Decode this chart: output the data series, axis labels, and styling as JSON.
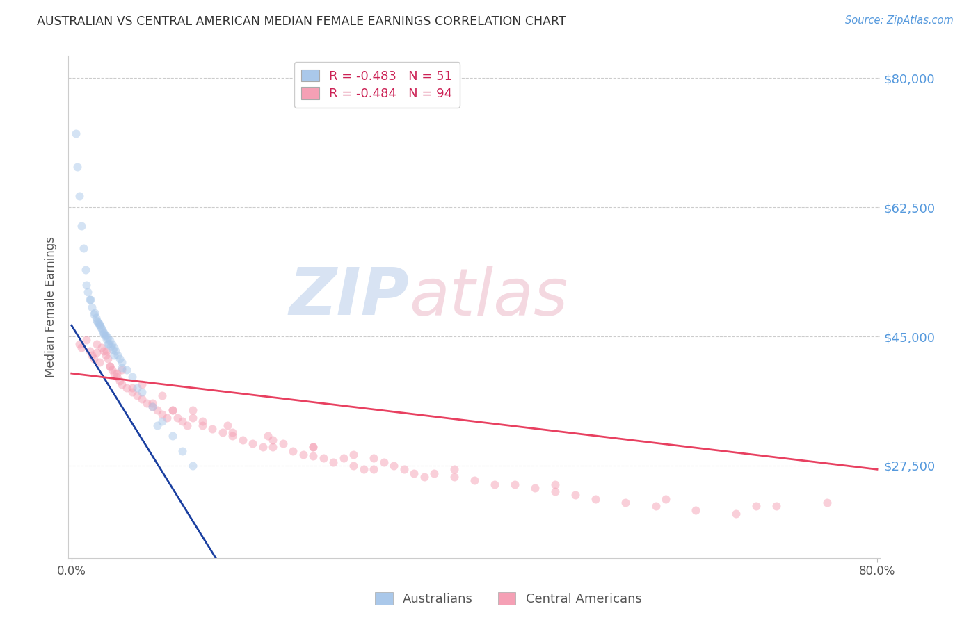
{
  "title": "AUSTRALIAN VS CENTRAL AMERICAN MEDIAN FEMALE EARNINGS CORRELATION CHART",
  "source": "Source: ZipAtlas.com",
  "ylabel": "Median Female Earnings",
  "xlim": [
    -0.003,
    0.803
  ],
  "ylim": [
    15000,
    83000
  ],
  "yticks": [
    27500,
    45000,
    62500,
    80000
  ],
  "ytick_labels": [
    "$27,500",
    "$45,000",
    "$62,500",
    "$80,000"
  ],
  "xtick_positions": [
    0.0,
    0.8
  ],
  "xtick_labels": [
    "0.0%",
    "80.0%"
  ],
  "background_color": "#ffffff",
  "grid_color": "#cccccc",
  "australian_color": "#aac8ea",
  "central_american_color": "#f5a0b5",
  "australian_line_color": "#1a3fa0",
  "central_american_line_color": "#e84060",
  "legend_label_aus": "Australians",
  "legend_label_ca": "Central Americans",
  "watermark_zip": "ZIP",
  "watermark_atlas": "atlas",
  "marker_size": 75,
  "marker_alpha": 0.5,
  "aus_R": -0.483,
  "aus_N": 51,
  "ca_R": -0.484,
  "ca_N": 94,
  "aus_x": [
    0.004,
    0.006,
    0.008,
    0.01,
    0.012,
    0.014,
    0.016,
    0.018,
    0.02,
    0.022,
    0.024,
    0.026,
    0.028,
    0.03,
    0.032,
    0.034,
    0.036,
    0.038,
    0.04,
    0.042,
    0.044,
    0.046,
    0.048,
    0.05,
    0.055,
    0.06,
    0.07,
    0.08,
    0.09,
    0.1,
    0.11,
    0.12,
    0.025,
    0.027,
    0.029,
    0.031,
    0.033,
    0.035,
    0.037,
    0.039,
    0.041,
    0.015,
    0.019,
    0.023,
    0.028,
    0.032,
    0.036,
    0.042,
    0.05,
    0.065,
    0.085
  ],
  "aus_y": [
    72500,
    68000,
    64000,
    60000,
    57000,
    54000,
    51000,
    50000,
    49000,
    48000,
    47500,
    47000,
    46500,
    46000,
    45500,
    45200,
    44800,
    44400,
    44000,
    43500,
    43000,
    42500,
    42000,
    41500,
    40500,
    39500,
    37500,
    35500,
    33500,
    31500,
    29500,
    27500,
    47200,
    46800,
    46200,
    45700,
    45100,
    44600,
    44100,
    43700,
    43200,
    52000,
    50000,
    48200,
    46600,
    45300,
    44000,
    42500,
    40800,
    38000,
    33000
  ],
  "ca_x": [
    0.008,
    0.01,
    0.015,
    0.018,
    0.02,
    0.022,
    0.025,
    0.028,
    0.03,
    0.032,
    0.034,
    0.036,
    0.038,
    0.04,
    0.042,
    0.045,
    0.048,
    0.05,
    0.055,
    0.06,
    0.065,
    0.07,
    0.075,
    0.08,
    0.085,
    0.09,
    0.095,
    0.1,
    0.105,
    0.11,
    0.115,
    0.12,
    0.13,
    0.14,
    0.15,
    0.16,
    0.17,
    0.18,
    0.19,
    0.2,
    0.21,
    0.22,
    0.23,
    0.24,
    0.25,
    0.26,
    0.27,
    0.28,
    0.29,
    0.3,
    0.31,
    0.32,
    0.33,
    0.34,
    0.35,
    0.36,
    0.38,
    0.4,
    0.42,
    0.44,
    0.46,
    0.48,
    0.5,
    0.52,
    0.55,
    0.58,
    0.62,
    0.66,
    0.7,
    0.75,
    0.038,
    0.045,
    0.06,
    0.08,
    0.1,
    0.13,
    0.16,
    0.2,
    0.24,
    0.28,
    0.025,
    0.035,
    0.05,
    0.07,
    0.09,
    0.12,
    0.155,
    0.195,
    0.24,
    0.3,
    0.38,
    0.48,
    0.59,
    0.68
  ],
  "ca_y": [
    44000,
    43500,
    44500,
    43000,
    42500,
    42000,
    42800,
    41500,
    43500,
    43000,
    42500,
    42000,
    41000,
    40500,
    40000,
    39500,
    39000,
    38500,
    38000,
    37500,
    37000,
    36500,
    36000,
    35500,
    35000,
    34500,
    34000,
    35000,
    34000,
    33500,
    33000,
    34000,
    33000,
    32500,
    32000,
    31500,
    31000,
    30500,
    30000,
    30000,
    30500,
    29500,
    29000,
    28800,
    28500,
    28000,
    28500,
    27500,
    27000,
    27000,
    28000,
    27500,
    27000,
    26500,
    26000,
    26500,
    26000,
    25500,
    25000,
    25000,
    24500,
    24000,
    23500,
    23000,
    22500,
    22000,
    21500,
    21000,
    22000,
    22500,
    41000,
    40000,
    38000,
    36000,
    35000,
    33500,
    32000,
    31000,
    30000,
    29000,
    44000,
    43000,
    40500,
    38500,
    37000,
    35000,
    33000,
    31500,
    30000,
    28500,
    27000,
    25000,
    23000,
    22000
  ],
  "aus_line_x": [
    0.0,
    0.175
  ],
  "ca_line_x": [
    0.0,
    0.8
  ]
}
